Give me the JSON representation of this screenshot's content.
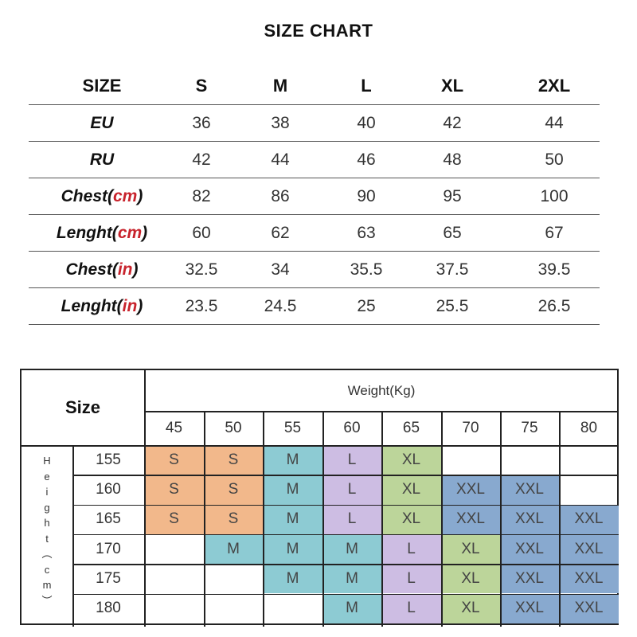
{
  "title": "SIZE CHART",
  "top_table": {
    "header_label": "SIZE",
    "sizes": [
      "S",
      "M",
      "L",
      "XL",
      "2XL"
    ],
    "rows": [
      {
        "label": "EU",
        "unit": "",
        "values": [
          "36",
          "38",
          "40",
          "42",
          "44"
        ]
      },
      {
        "label": "RU",
        "unit": "",
        "values": [
          "42",
          "44",
          "46",
          "48",
          "50"
        ]
      },
      {
        "label": "Chest(",
        "unit": "cm",
        "close": ")",
        "values": [
          "82",
          "86",
          "90",
          "95",
          "100"
        ]
      },
      {
        "label": "Lenght(",
        "unit": "cm",
        "close": ")",
        "values": [
          "60",
          "62",
          "63",
          "65",
          "67"
        ]
      },
      {
        "label": "Chest(",
        "unit": "in",
        "close": ")",
        "values": [
          "32.5",
          "34",
          "35.5",
          "37.5",
          "39.5"
        ]
      },
      {
        "label": "Lenght(",
        "unit": "in",
        "close": ")",
        "values": [
          "23.5",
          "24.5",
          "25",
          "25.5",
          "26.5"
        ]
      }
    ]
  },
  "bottom_table": {
    "corner_label": "Size",
    "weight_label": "Weight(Kg)",
    "height_label": [
      "H",
      "e",
      "i",
      "g",
      "h",
      "t",
      "︵",
      "c",
      "m",
      "︶"
    ],
    "weights": [
      "45",
      "50",
      "55",
      "60",
      "65",
      "70",
      "75",
      "80"
    ],
    "rows": [
      {
        "height": "155",
        "cells": [
          "S",
          "S",
          "M",
          "L",
          "XL",
          "",
          "",
          ""
        ]
      },
      {
        "height": "160",
        "cells": [
          "S",
          "S",
          "M",
          "L",
          "XL",
          "XXL",
          "XXL",
          ""
        ]
      },
      {
        "height": "165",
        "cells": [
          "S",
          "S",
          "M",
          "L",
          "XL",
          "XXL",
          "XXL",
          "XXL"
        ]
      },
      {
        "height": "170",
        "cells": [
          "",
          "M",
          "M",
          "M",
          "L",
          "XL",
          "XXL",
          "XXL"
        ]
      },
      {
        "height": "175",
        "cells": [
          "",
          "",
          "M",
          "M",
          "L",
          "XL",
          "XXL",
          "XXL"
        ]
      },
      {
        "height": "180",
        "cells": [
          "",
          "",
          "",
          "M",
          "L",
          "XL",
          "XXL",
          "XXL"
        ]
      }
    ],
    "colors": {
      "S": "#f2b88b",
      "M": "#8dcbd3",
      "L": "#cdbde3",
      "XL": "#bcd59a",
      "XXL": "#88a9cf"
    }
  }
}
